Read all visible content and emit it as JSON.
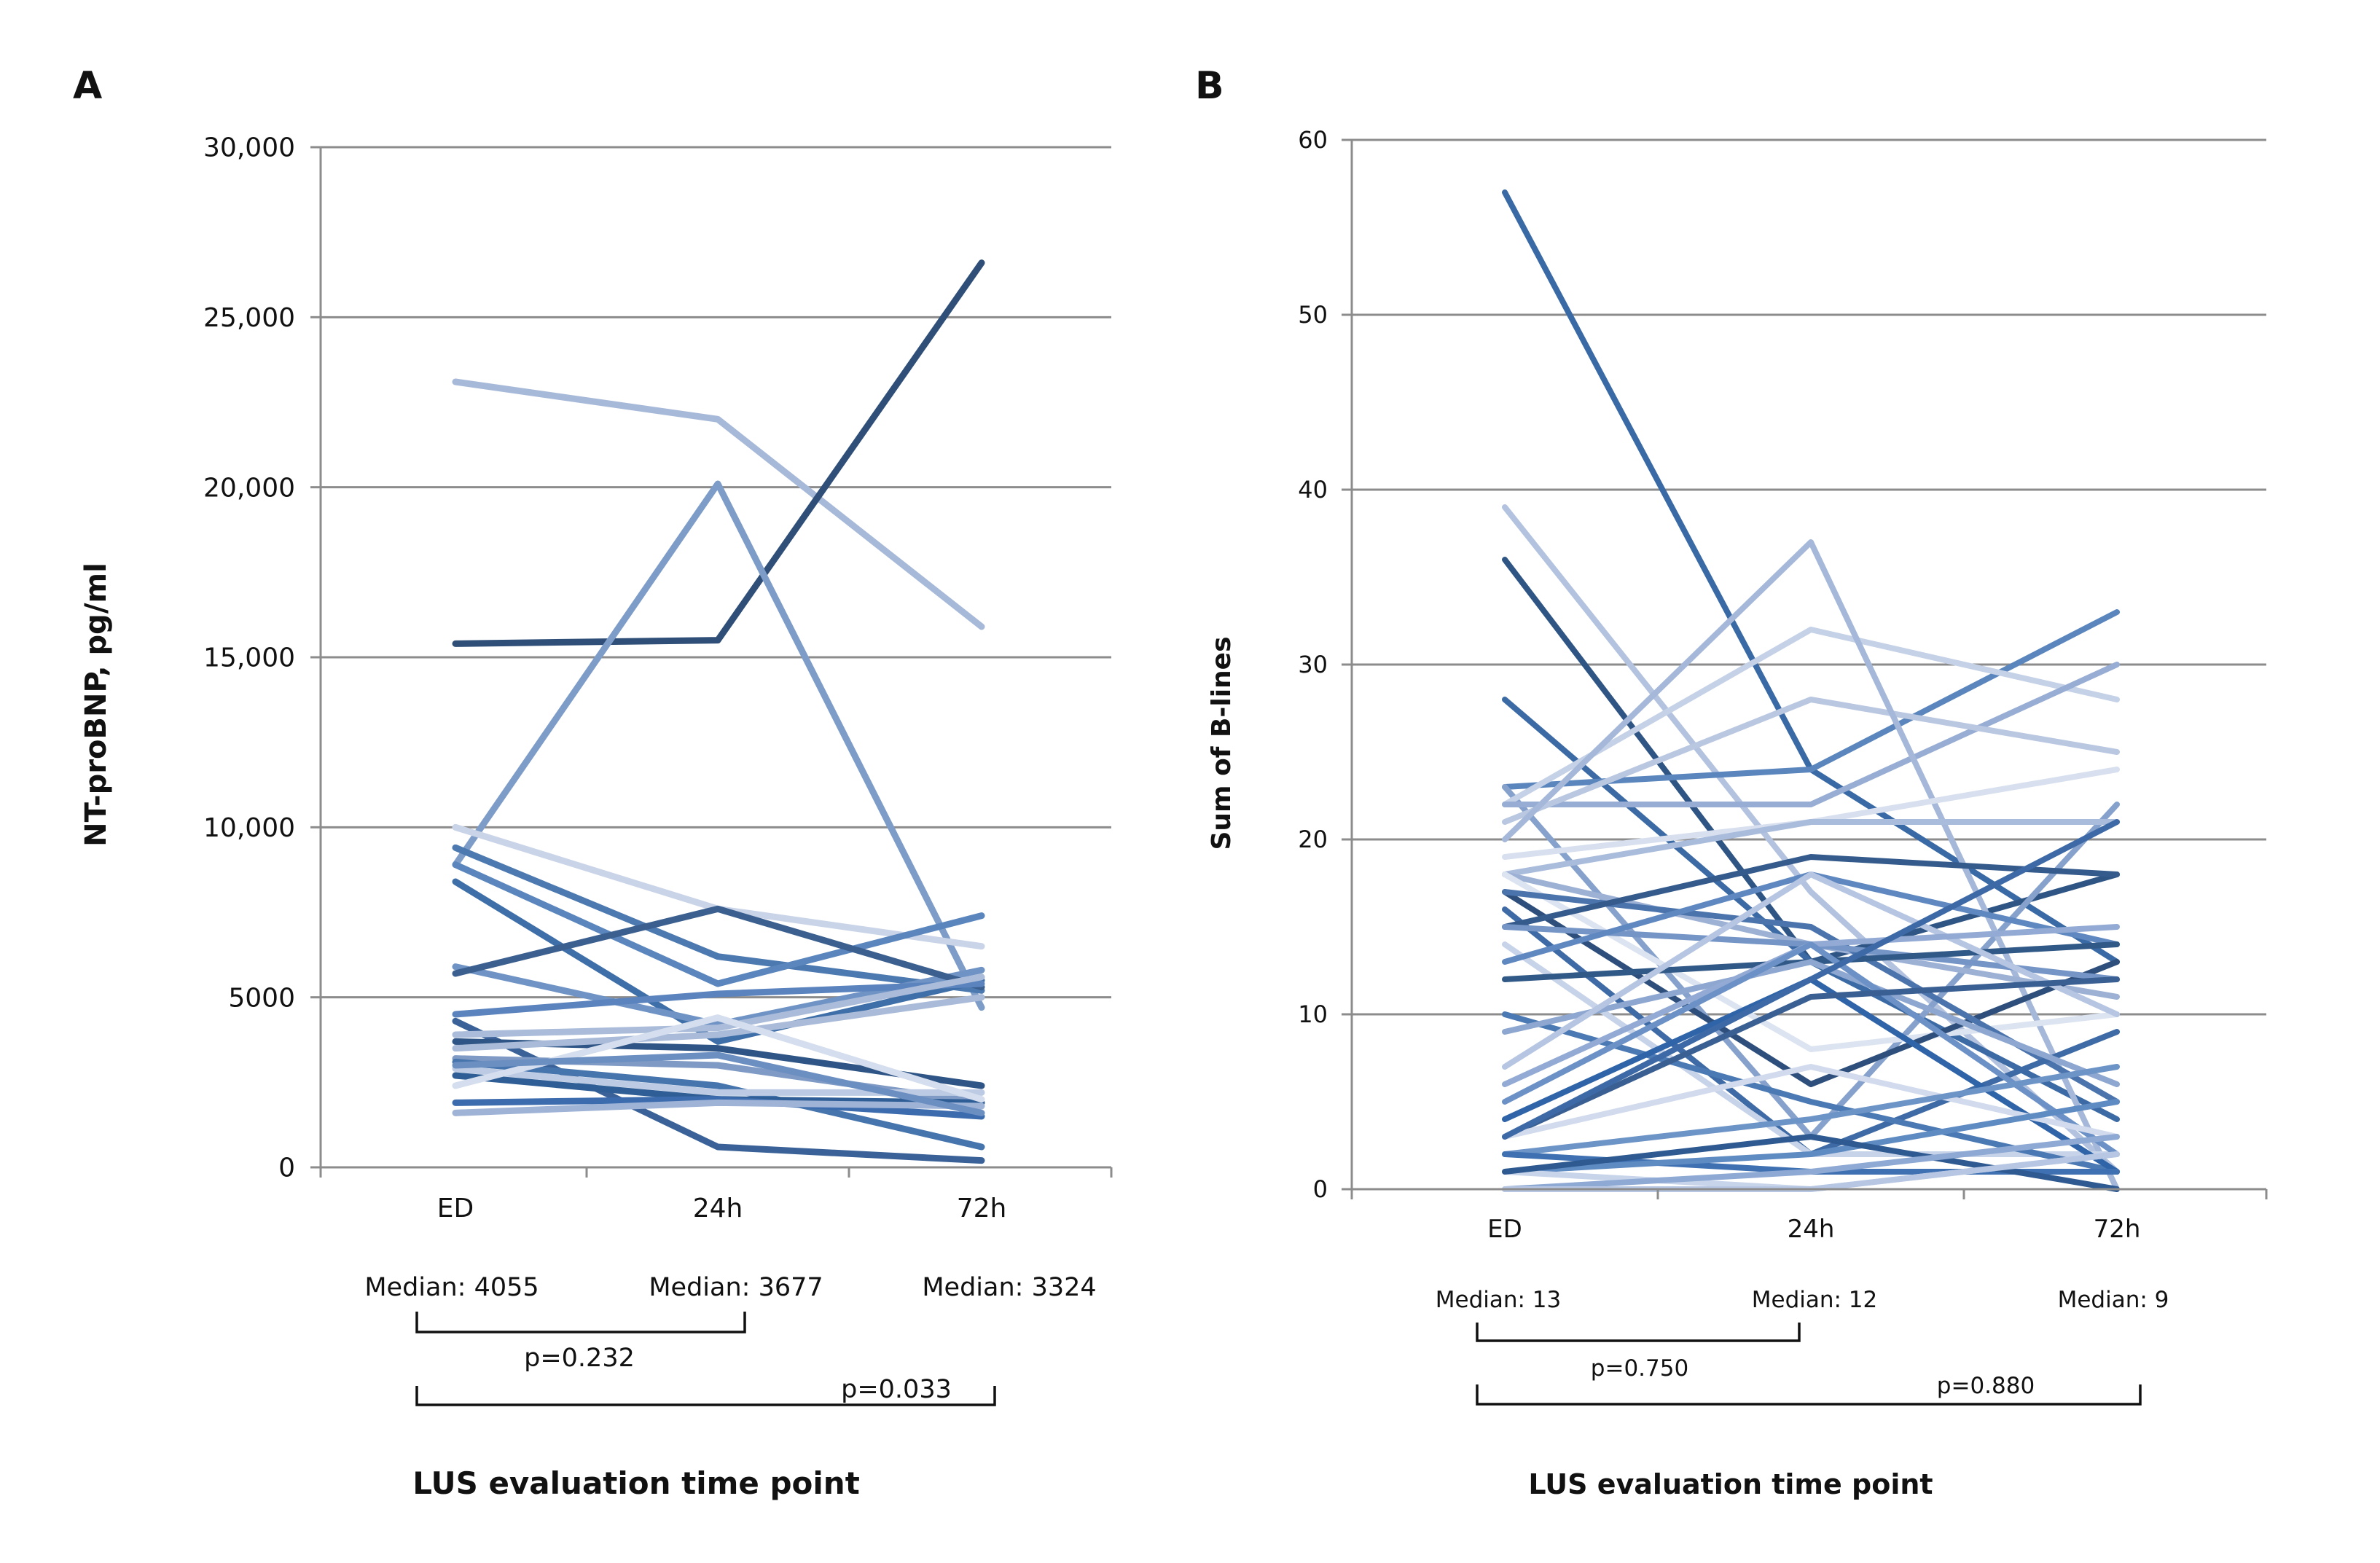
{
  "chart_data": [
    {
      "type": "line",
      "panel": "A",
      "ylabel": "NT-proBNP, pg/ml",
      "xlabel": "LUS evaluation time point",
      "categories": [
        "ED",
        "24h",
        "72h"
      ],
      "ylim": [
        0,
        30000
      ],
      "yticks": [
        0,
        5000,
        10000,
        15000,
        20000,
        25000,
        30000
      ],
      "ytick_labels": [
        "0",
        "5000",
        "10,000",
        "15,000",
        "20,000",
        "25,000",
        "30,000"
      ],
      "grid": true,
      "medians": [
        "Median: 4055",
        "Median: 3677",
        "Median: 3324"
      ],
      "pvalues": [
        "p=0.232",
        "p=0.033"
      ],
      "series": [
        {
          "values": [
            23100,
            22000,
            15900
          ],
          "color": "#a7b9d8"
        },
        {
          "values": [
            15400,
            15500,
            26600
          ],
          "color": "#2f4f78"
        },
        {
          "values": [
            8900,
            20100,
            4700
          ],
          "color": "#7d9cc8"
        },
        {
          "values": [
            10000,
            7600,
            6500
          ],
          "color": "#c9d4e8"
        },
        {
          "values": [
            9400,
            6200,
            5200
          ],
          "color": "#4c79b0"
        },
        {
          "values": [
            8900,
            5400,
            7400
          ],
          "color": "#5a86bd"
        },
        {
          "values": [
            8400,
            3700,
            5500
          ],
          "color": "#3f6fa8"
        },
        {
          "values": [
            5900,
            4200,
            5800
          ],
          "color": "#6f93c4"
        },
        {
          "values": [
            5700,
            7600,
            5300
          ],
          "color": "#3b5f8f"
        },
        {
          "values": [
            4500,
            5100,
            5400
          ],
          "color": "#5b83bd"
        },
        {
          "values": [
            4300,
            600,
            200
          ],
          "color": "#3a6298"
        },
        {
          "values": [
            3900,
            4100,
            5600
          ],
          "color": "#aabcd9"
        },
        {
          "values": [
            3700,
            3500,
            2400
          ],
          "color": "#2e5585"
        },
        {
          "values": [
            3500,
            3900,
            5000
          ],
          "color": "#a9bbd8"
        },
        {
          "values": [
            3200,
            3000,
            1900
          ],
          "color": "#7f9ac4"
        },
        {
          "values": [
            3100,
            2400,
            600
          ],
          "color": "#4674ad"
        },
        {
          "values": [
            2900,
            2200,
            2200
          ],
          "color": "#bccbe3"
        },
        {
          "values": [
            2700,
            2000,
            1900
          ],
          "color": "#2f5e96"
        },
        {
          "values": [
            2400,
            4400,
            2000
          ],
          "color": "#d5deee"
        },
        {
          "values": [
            1900,
            2000,
            1500
          ],
          "color": "#3d6cae"
        },
        {
          "values": [
            1600,
            1900,
            1800
          ],
          "color": "#9fb3d6"
        },
        {
          "values": [
            3000,
            3300,
            1600
          ],
          "color": "#6c8fc2"
        }
      ]
    },
    {
      "type": "line",
      "panel": "B",
      "ylabel": "Sum of B-lines",
      "xlabel": "LUS evaluation time point",
      "categories": [
        "ED",
        "24h",
        "72h"
      ],
      "ylim": [
        0,
        60
      ],
      "yticks": [
        0,
        10,
        20,
        30,
        40,
        50,
        60
      ],
      "ytick_labels": [
        "0",
        "10",
        "20",
        "30",
        "40",
        "50",
        "60"
      ],
      "grid": true,
      "medians": [
        "Median: 13",
        "Median: 12",
        "Median: 9"
      ],
      "pvalues": [
        "p=0.750",
        "p=0.880"
      ],
      "series": [
        {
          "values": [
            57,
            24,
            13
          ],
          "color": "#3a6aa5"
        },
        {
          "values": [
            39,
            17,
            1
          ],
          "color": "#b3c3df"
        },
        {
          "values": [
            36,
            13,
            18
          ],
          "color": "#2f5585"
        },
        {
          "values": [
            28,
            13,
            4
          ],
          "color": "#3b6aa4"
        },
        {
          "values": [
            23,
            24,
            33
          ],
          "color": "#5a86bd"
        },
        {
          "values": [
            23,
            3,
            22
          ],
          "color": "#86a2cc"
        },
        {
          "values": [
            22,
            32,
            28
          ],
          "color": "#c4d1e7"
        },
        {
          "values": [
            22,
            22,
            30
          ],
          "color": "#97add4"
        },
        {
          "values": [
            21,
            28,
            25
          ],
          "color": "#b9c7e1"
        },
        {
          "values": [
            20,
            37,
            0
          ],
          "color": "#a5b8d9"
        },
        {
          "values": [
            19,
            21,
            24
          ],
          "color": "#d8e0ef"
        },
        {
          "values": [
            18,
            21,
            21
          ],
          "color": "#aabcdb"
        },
        {
          "values": [
            18,
            14,
            11
          ],
          "color": "#9db1d5"
        },
        {
          "values": [
            18,
            8,
            10
          ],
          "color": "#dde4f1"
        },
        {
          "values": [
            17,
            6,
            13
          ],
          "color": "#2e4f7c"
        },
        {
          "values": [
            17,
            15,
            5
          ],
          "color": "#4b74ad"
        },
        {
          "values": [
            16,
            2,
            9
          ],
          "color": "#3e6aa5"
        },
        {
          "values": [
            15,
            19,
            18
          ],
          "color": "#355b8d"
        },
        {
          "values": [
            15,
            14,
            12
          ],
          "color": "#7595c6"
        },
        {
          "values": [
            14,
            2,
            2
          ],
          "color": "#c7d3e9"
        },
        {
          "values": [
            13,
            18,
            14
          ],
          "color": "#5f88c1"
        },
        {
          "values": [
            12,
            13,
            14
          ],
          "color": "#315987"
        },
        {
          "values": [
            10,
            5,
            1
          ],
          "color": "#4b79b3"
        },
        {
          "values": [
            9,
            13,
            6
          ],
          "color": "#8da7d0"
        },
        {
          "values": [
            7,
            18,
            10
          ],
          "color": "#b5c5e2"
        },
        {
          "values": [
            6,
            14,
            15
          ],
          "color": "#92aad4"
        },
        {
          "values": [
            5,
            14,
            2
          ],
          "color": "#6b91c6"
        },
        {
          "values": [
            4,
            12,
            1
          ],
          "color": "#2f64a8"
        },
        {
          "values": [
            3,
            11,
            12
          ],
          "color": "#3a5f92"
        },
        {
          "values": [
            3,
            7,
            3
          ],
          "color": "#d2dbed"
        },
        {
          "values": [
            2,
            4,
            7
          ],
          "color": "#6d94c7"
        },
        {
          "values": [
            2,
            1,
            1
          ],
          "color": "#3e70b2"
        },
        {
          "values": [
            1,
            2,
            5
          ],
          "color": "#5f8bc3"
        },
        {
          "values": [
            1,
            0,
            2
          ],
          "color": "#c7d4ea"
        },
        {
          "values": [
            1,
            3,
            0
          ],
          "color": "#2f5a91"
        },
        {
          "values": [
            0,
            1,
            3
          ],
          "color": "#8ea9d3"
        },
        {
          "values": [
            0,
            0,
            2
          ],
          "color": "#b7c7e3"
        },
        {
          "values": [
            3,
            12,
            21
          ],
          "color": "#3d6aa6"
        }
      ]
    }
  ]
}
